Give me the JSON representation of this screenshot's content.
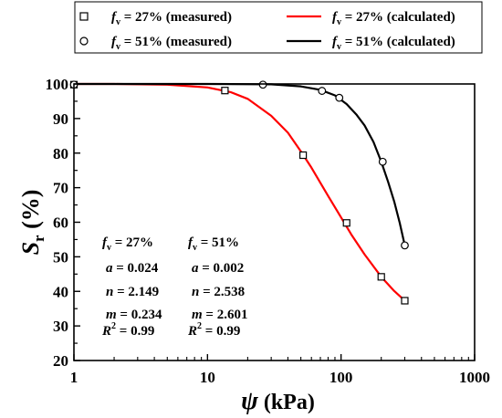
{
  "chart_data": {
    "type": "line",
    "xscale": "log",
    "xlim": [
      1,
      1000
    ],
    "ylim": [
      20,
      100
    ],
    "grid": false,
    "legend_position": "top",
    "xlabel": {
      "symbol": "ψ",
      "unit": "(kPa)"
    },
    "ylabel": {
      "symbol": "S",
      "subscript": "r",
      "unit": "(%)"
    },
    "x_ticks": [
      {
        "value": 1,
        "label": "1"
      },
      {
        "value": 10,
        "label": "10"
      },
      {
        "value": 100,
        "label": "100"
      },
      {
        "value": 1000,
        "label": "1000"
      }
    ],
    "y_ticks": [
      20,
      30,
      40,
      50,
      60,
      70,
      80,
      90,
      100
    ],
    "series": [
      {
        "name": "fv = 27% (measured)",
        "legend": {
          "var": "f",
          "sub": "v",
          "text": " = 27% (measured)"
        },
        "kind": "marker",
        "marker": "square",
        "color": "#000000",
        "x": [
          1,
          13.5,
          52,
          110,
          200,
          300
        ],
        "y": [
          99.8,
          98.1,
          79.4,
          59.8,
          44.2,
          37.3
        ]
      },
      {
        "name": "fv = 51% (measured)",
        "legend": {
          "var": "f",
          "sub": "v",
          "text": " = 51% (measured)"
        },
        "kind": "marker",
        "marker": "circle",
        "color": "#000000",
        "x": [
          1,
          26,
          72,
          97,
          205,
          300
        ],
        "y": [
          99.8,
          99.8,
          98.0,
          96.0,
          77.5,
          53.3
        ]
      },
      {
        "name": "fv = 27% (calculated)",
        "legend": {
          "var": "f",
          "sub": "v",
          "text": " = 27% (calculated)"
        },
        "kind": "line",
        "color": "#ff0000",
        "x": [
          1,
          2,
          5,
          10,
          15,
          20,
          30,
          40,
          50,
          60,
          80,
          100,
          120,
          150,
          200,
          250,
          300
        ],
        "y": [
          100,
          100,
          99.8,
          99.0,
          97.6,
          95.7,
          90.8,
          85.9,
          80.5,
          75.8,
          67.6,
          61.4,
          56.3,
          50.7,
          44.2,
          40.1,
          37.3
        ]
      },
      {
        "name": "fv = 51% (calculated)",
        "legend": {
          "var": "f",
          "sub": "v",
          "text": " = 51% (calculated)"
        },
        "kind": "line",
        "color": "#000000",
        "x": [
          1,
          10,
          30,
          50,
          70,
          90,
          110,
          130,
          150,
          175,
          200,
          225,
          250,
          275,
          300
        ],
        "y": [
          100,
          100,
          99.9,
          99.3,
          98.3,
          96.7,
          94.2,
          91.2,
          88.0,
          83.2,
          77.5,
          71.7,
          66.0,
          59.8,
          53.3
        ]
      }
    ],
    "annotations": {
      "col1": [
        {
          "var": "f",
          "sub": "v",
          "text": " = 27%"
        },
        {
          "var": "a",
          "text": " = 0.024"
        },
        {
          "var": "n",
          "text": " = 2.149"
        },
        {
          "var": "m",
          "text": " = 0.234"
        },
        {
          "var": "R",
          "sup": "2",
          "text": " = 0.99"
        }
      ],
      "col2": [
        {
          "var": "f",
          "sub": "v",
          "text": " = 51%"
        },
        {
          "var": "a",
          "text": " = 0.002"
        },
        {
          "var": "n",
          "text": " = 2.538"
        },
        {
          "var": "m",
          "text": " = 2.601"
        },
        {
          "var": "R",
          "sup": "2",
          "text": " = 0.99"
        }
      ]
    }
  }
}
